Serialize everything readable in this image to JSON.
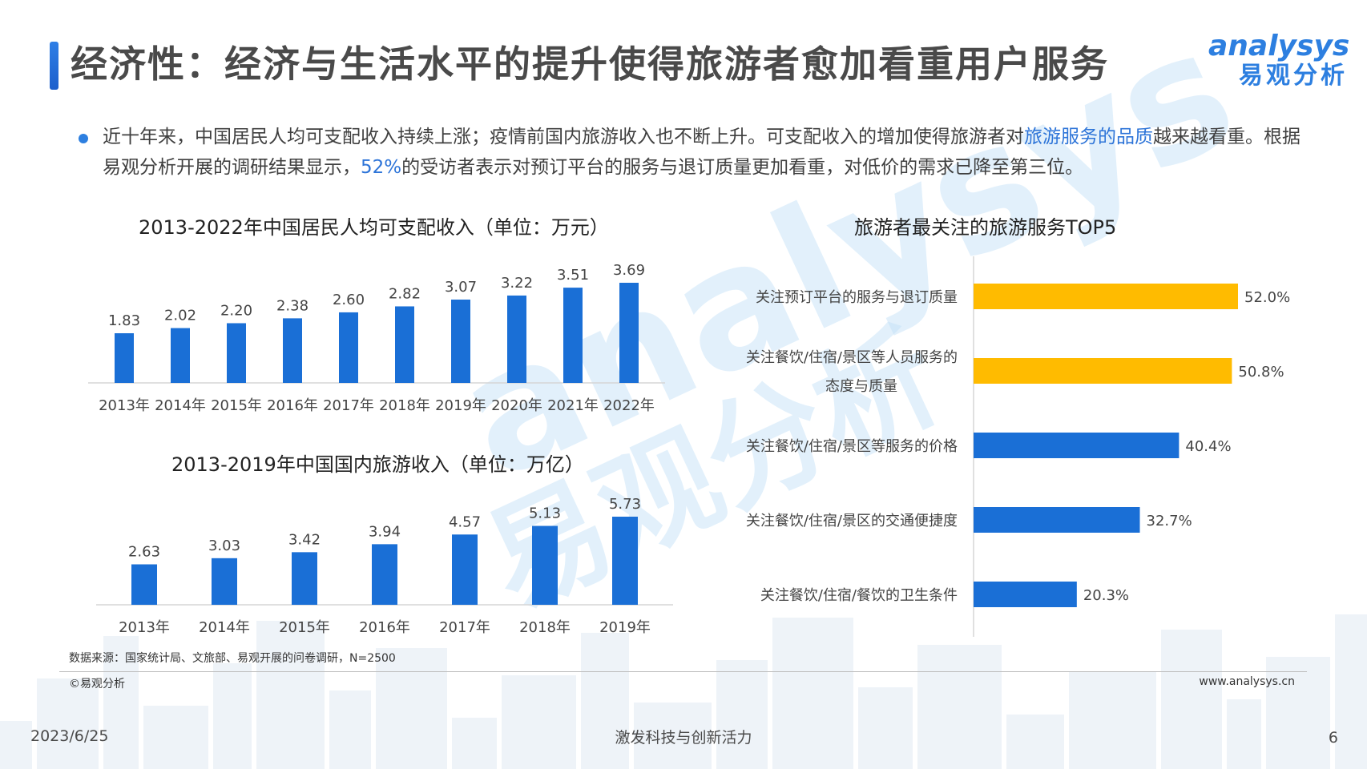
{
  "header": {
    "title": "经济性：经济与生活水平的提升使得旅游者愈加看重用户服务",
    "logo_en": "analysys",
    "logo_cn": "易观分析"
  },
  "intro": {
    "part1": "近十年来，中国居民人均可支配收入持续上涨；疫情前国内旅游收入也不断上升。可支配收入的增加使得旅游者对",
    "highlight1": "旅游服务的品质",
    "part2": "越来越看重。根据易观分析开展的调研结果显示，",
    "highlight2": "52%",
    "part3": "的受访者表示对预订平台的服务与退订质量更加看重，对低价的需求已降至第三位。"
  },
  "chart_data": [
    {
      "type": "bar",
      "title": "2013-2022年中国居民人均可支配收入（单位：万元）",
      "categories": [
        "2013年",
        "2014年",
        "2015年",
        "2016年",
        "2017年",
        "2018年",
        "2019年",
        "2020年",
        "2021年",
        "2022年"
      ],
      "values": [
        1.83,
        2.02,
        2.2,
        2.38,
        2.6,
        2.82,
        3.07,
        3.22,
        3.51,
        3.69
      ],
      "labels": [
        "1.83",
        "2.02",
        "2.20",
        "2.38",
        "2.60",
        "2.82",
        "3.07",
        "3.22",
        "3.51",
        "3.69"
      ],
      "color": "#1a6fd6",
      "grid": false
    },
    {
      "type": "bar",
      "title": "2013-2019年中国国内旅游收入（单位：万亿）",
      "categories": [
        "2013年",
        "2014年",
        "2015年",
        "2016年",
        "2017年",
        "2018年",
        "2019年"
      ],
      "values": [
        2.63,
        3.03,
        3.42,
        3.94,
        4.57,
        5.13,
        5.73
      ],
      "labels": [
        "2.63",
        "3.03",
        "3.42",
        "3.94",
        "4.57",
        "5.13",
        "5.73"
      ],
      "color": "#1a6fd6",
      "grid": false
    },
    {
      "type": "bar",
      "orientation": "horizontal",
      "title": "旅游者最关注的旅游服务TOP5",
      "categories": [
        [
          "关注预订平台的服务与退订质量"
        ],
        [
          "关注餐饮/住宿/景区等人员服务的",
          "态度与质量"
        ],
        [
          "关注餐饮/住宿/景区等服务的价格"
        ],
        [
          "关注餐饮/住宿/景区的交通便捷度"
        ],
        [
          "关注餐饮/住宿/餐饮的卫生条件"
        ]
      ],
      "values": [
        52.0,
        50.8,
        40.4,
        32.7,
        20.3
      ],
      "labels": [
        "52.0%",
        "50.8%",
        "40.4%",
        "32.7%",
        "20.3%"
      ],
      "colors": [
        "#ffbb00",
        "#ffbb00",
        "#1a6fd6",
        "#1a6fd6",
        "#1a6fd6"
      ],
      "unit": "%",
      "grid": false
    }
  ],
  "footer": {
    "source": "数据来源：国家统计局、文旅部、易观开展的问卷调研，N=2500",
    "copyright": "©易观分析",
    "website": "www.analysys.cn",
    "date": "2023/6/25",
    "slogan": "激发科技与创新活力",
    "page": "6"
  },
  "watermark": {
    "en": "analysys",
    "cn": "易观分析"
  }
}
